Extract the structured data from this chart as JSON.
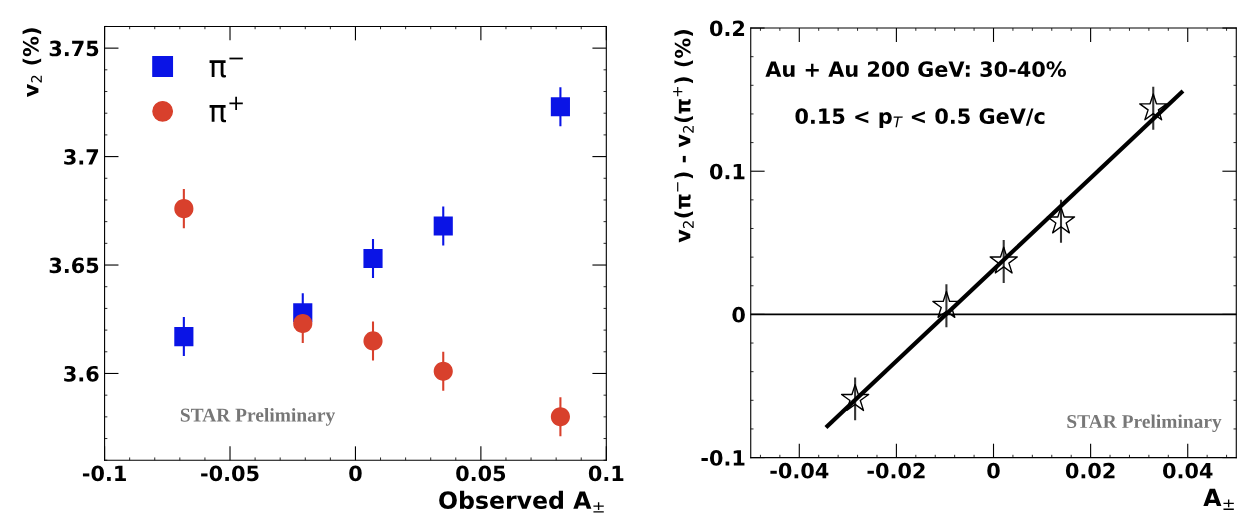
{
  "chart_data": [
    {
      "type": "scatter",
      "xlabel": "Observed A$_{±}$",
      "ylabel": "v$_{2}$ (%)",
      "xlim": [
        -0.1,
        0.1
      ],
      "xticks": [
        -0.1,
        -0.05,
        0,
        0.05,
        0.1
      ],
      "ylim": [
        3.56,
        3.76
      ],
      "yticks": [
        3.6,
        3.65,
        3.7,
        3.75
      ],
      "grid": false,
      "legend": "top left",
      "annotations": [
        "STAR Preliminary"
      ],
      "series": [
        {
          "name": "π$^{−}$",
          "color": "#0a14e6",
          "marker": "square",
          "x": [
            -0.0684,
            -0.021,
            0.007,
            0.035,
            0.0817
          ],
          "values": [
            3.617,
            3.628,
            3.653,
            3.668,
            3.723
          ],
          "errors": [
            0.009,
            0.009,
            0.009,
            0.009,
            0.009
          ]
        },
        {
          "name": "π$^{+}$",
          "color": "#d8402c",
          "marker": "circle",
          "x": [
            -0.0684,
            -0.021,
            0.007,
            0.035,
            0.0817
          ],
          "values": [
            3.676,
            3.623,
            3.615,
            3.601,
            3.58
          ],
          "errors": [
            0.009,
            0.009,
            0.009,
            0.009,
            0.009
          ]
        }
      ]
    },
    {
      "type": "scatter",
      "xlabel": "A$_{±}$",
      "ylabel": "v$_{2}$(π$^{−}$) - v$_{2}$(π$^{+}$) (%)",
      "xlim": [
        -0.05,
        0.05
      ],
      "xticks": [
        -0.04,
        -0.02,
        0,
        0.02,
        0.04
      ],
      "ylim": [
        -0.1,
        0.2
      ],
      "yticks": [
        -0.1,
        0,
        0.1,
        0.2
      ],
      "grid": false,
      "legend": false,
      "annotations": [
        "Au + Au 200 GeV: 30-40%",
        "0.15 < p$_{T}$ < 0.5 GeV/c",
        "STAR Preliminary"
      ],
      "ref_lines": [
        {
          "axis": "y",
          "value": 0,
          "color": "#000000"
        }
      ],
      "series": [
        {
          "color": "#000000",
          "marker": "star",
          "x": [
            -0.0285,
            -0.0097,
            0.0021,
            0.0139,
            0.0329
          ],
          "values": [
            -0.059,
            0.006,
            0.037,
            0.065,
            0.144
          ],
          "errors": [
            0.015,
            0.015,
            0.015,
            0.015,
            0.015
          ]
        },
        {
          "type": "line",
          "color": "#000000",
          "marker": "none",
          "x": [
            -0.0342,
            0.0387
          ],
          "values": [
            -0.078,
            0.155
          ]
        }
      ]
    }
  ]
}
